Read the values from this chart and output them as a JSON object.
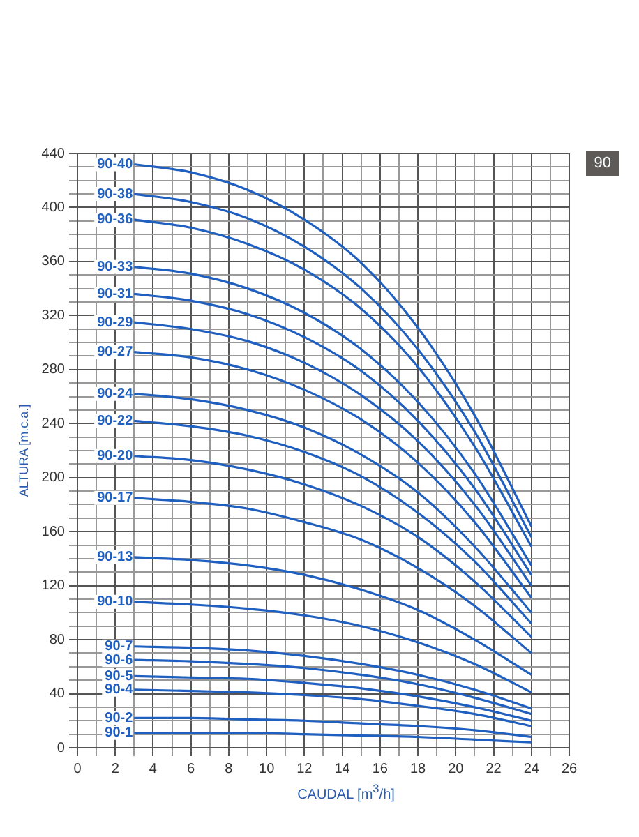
{
  "chart_data": {
    "type": "line",
    "xlabel": "CAUDAL [m$^{3}$/h]",
    "ylabel": "ALTURA [m.c.a.]",
    "annotations": [
      "90"
    ],
    "x": [
      3,
      6,
      9,
      12,
      15,
      18,
      21,
      24
    ],
    "xlim": [
      0,
      26
    ],
    "ylim": [
      0,
      440
    ],
    "xticks": [
      0,
      {
        "value": 1,
        "label": null
      },
      2,
      {
        "value": 3,
        "label": null
      },
      4,
      {
        "value": 5,
        "label": null
      },
      6,
      {
        "value": 7,
        "label": null
      },
      8,
      {
        "value": 9,
        "label": null
      },
      10,
      {
        "value": 11,
        "label": null
      },
      12,
      {
        "value": 13,
        "label": null
      },
      14,
      {
        "value": 15,
        "label": null
      },
      16,
      {
        "value": 17,
        "label": null
      },
      18,
      {
        "value": 19,
        "label": null
      },
      20,
      {
        "value": 21,
        "label": null
      },
      22,
      {
        "value": 23,
        "label": null
      },
      24,
      {
        "value": 25,
        "label": null
      },
      26
    ],
    "yticks": [
      0,
      {
        "value": 10,
        "label": null
      },
      {
        "value": 20,
        "label": null
      },
      {
        "value": 30,
        "label": null
      },
      40,
      {
        "value": 50,
        "label": null
      },
      {
        "value": 60,
        "label": null
      },
      {
        "value": 70,
        "label": null
      },
      80,
      {
        "value": 90,
        "label": null
      },
      {
        "value": 100,
        "label": null
      },
      {
        "value": 110,
        "label": null
      },
      120,
      {
        "value": 130,
        "label": null
      },
      {
        "value": 140,
        "label": null
      },
      {
        "value": 150,
        "label": null
      },
      160,
      {
        "value": 170,
        "label": null
      },
      {
        "value": 180,
        "label": null
      },
      {
        "value": 190,
        "label": null
      },
      200,
      {
        "value": 210,
        "label": null
      },
      {
        "value": 220,
        "label": null
      },
      {
        "value": 230,
        "label": null
      },
      240,
      {
        "value": 250,
        "label": null
      },
      {
        "value": 260,
        "label": null
      },
      {
        "value": 270,
        "label": null
      },
      280,
      {
        "value": 290,
        "label": null
      },
      {
        "value": 300,
        "label": null
      },
      {
        "value": 310,
        "label": null
      },
      320,
      {
        "value": 330,
        "label": null
      },
      {
        "value": 340,
        "label": null
      },
      {
        "value": 350,
        "label": null
      },
      360,
      {
        "value": 370,
        "label": null
      },
      {
        "value": 380,
        "label": null
      },
      {
        "value": 390,
        "label": null
      },
      400,
      {
        "value": 410,
        "label": null
      },
      {
        "value": 420,
        "label": null
      },
      {
        "value": 430,
        "label": null
      },
      440
    ],
    "grid": true,
    "legend": false,
    "marker": "none",
    "line_style": "solid",
    "series": [
      {
        "name": "90-40",
        "color": "#1f5fbf",
        "values": [
          432,
          426,
          413,
          391,
          359,
          311,
          246,
          164
        ]
      },
      {
        "name": "90-38",
        "color": "#1f5fbf",
        "values": [
          410,
          404,
          392,
          371,
          340,
          295,
          234,
          156
        ]
      },
      {
        "name": "90-36",
        "color": "#1f5fbf",
        "values": [
          391,
          385,
          373,
          354,
          325,
          282,
          223,
          149
        ]
      },
      {
        "name": "90-33",
        "color": "#1f5fbf",
        "values": [
          356,
          351,
          340,
          322,
          295,
          256,
          203,
          135
        ]
      },
      {
        "name": "90-31",
        "color": "#1f5fbf",
        "values": [
          336,
          331,
          321,
          304,
          279,
          242,
          192,
          128
        ]
      },
      {
        "name": "90-29",
        "color": "#1f5fbf",
        "values": [
          315,
          310,
          301,
          285,
          261,
          227,
          180,
          120
        ]
      },
      {
        "name": "90-27",
        "color": "#1f5fbf",
        "values": [
          293,
          289,
          280,
          265,
          243,
          211,
          167,
          111
        ]
      },
      {
        "name": "90-24",
        "color": "#1f5fbf",
        "values": [
          262,
          258,
          250,
          237,
          217,
          189,
          149,
          100
        ]
      },
      {
        "name": "90-22",
        "color": "#1f5fbf",
        "values": [
          242,
          238,
          231,
          219,
          201,
          174,
          138,
          92
        ]
      },
      {
        "name": "90-20",
        "color": "#1f5fbf",
        "values": [
          216,
          213,
          206,
          195,
          179,
          156,
          123,
          82
        ]
      },
      {
        "name": "90-17",
        "color": "#1f5fbf",
        "values": [
          185,
          182,
          177,
          167,
          154,
          133,
          105,
          70
        ]
      },
      {
        "name": "90-13",
        "color": "#1f5fbf",
        "values": [
          141,
          139,
          135,
          128,
          117,
          102,
          80,
          54
        ]
      },
      {
        "name": "90-10",
        "color": "#1f5fbf",
        "values": [
          108,
          106,
          103,
          98,
          90,
          78,
          62,
          41
        ]
      },
      {
        "name": "90-7",
        "color": "#1f5fbf",
        "values": [
          75,
          74,
          72,
          68,
          62,
          54,
          43,
          29
        ]
      },
      {
        "name": "90-6",
        "color": "#1f5fbf",
        "values": [
          65,
          64,
          62,
          59,
          54,
          47,
          37,
          25
        ]
      },
      {
        "name": "90-5",
        "color": "#1f5fbf",
        "values": [
          53,
          52,
          51,
          48,
          44,
          38,
          30,
          20
        ]
      },
      {
        "name": "90-4",
        "color": "#1f5fbf",
        "values": [
          43,
          42,
          41,
          39,
          36,
          31,
          25,
          16
        ]
      },
      {
        "name": "90-2",
        "color": "#1f5fbf",
        "values": [
          22,
          22,
          21,
          20,
          18,
          16,
          13,
          8
        ]
      },
      {
        "name": "90-1",
        "color": "#1f5fbf",
        "values": [
          11,
          11,
          11,
          10,
          9,
          8,
          6,
          4
        ]
      }
    ]
  }
}
